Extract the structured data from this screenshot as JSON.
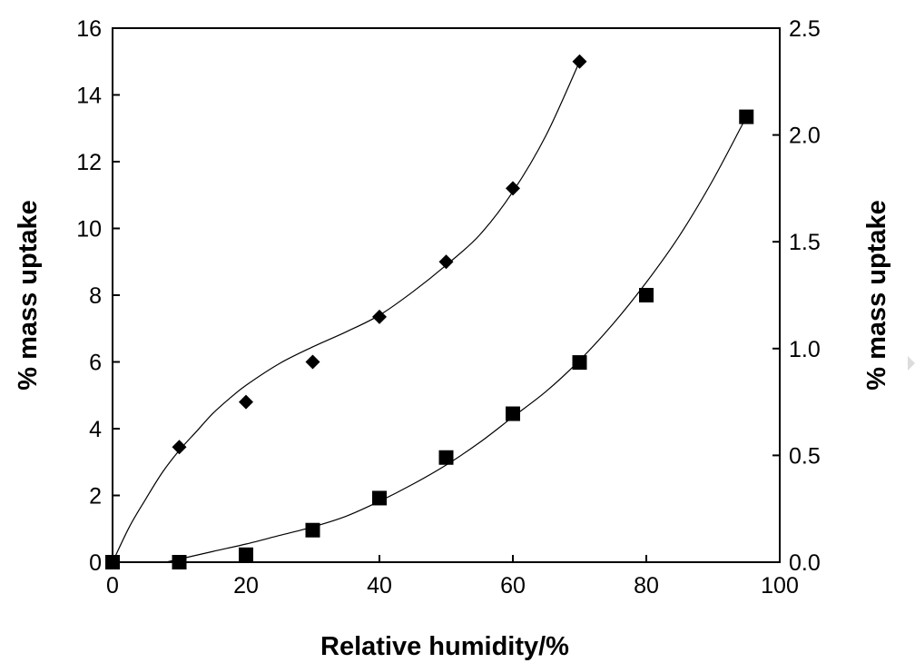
{
  "chart_data": {
    "type": "scatter",
    "xlabel": "Relative humidity/%",
    "ylabel_left": "% mass uptake",
    "ylabel_right": "% mass uptake",
    "xlim": [
      0,
      100
    ],
    "ylim_left": [
      0,
      16
    ],
    "ylim_right": [
      0,
      2.5
    ],
    "x_ticks": [
      "0",
      "20",
      "40",
      "60",
      "80",
      "100"
    ],
    "y_left_ticks": [
      "0",
      "2",
      "4",
      "6",
      "8",
      "10",
      "12",
      "14",
      "16"
    ],
    "y_right_ticks": [
      "0.0",
      "0.5",
      "1.0",
      "1.5",
      "2.0",
      "2.5"
    ],
    "grid": false,
    "series": [
      {
        "marker": "diamond",
        "axis": "left",
        "x": [
          0,
          10,
          20,
          30,
          40,
          50,
          60,
          70
        ],
        "y": [
          0,
          3.45,
          4.8,
          6.0,
          7.35,
          9.0,
          11.2,
          15.0
        ],
        "fit_curve": {
          "x": [
            0,
            2.5,
            5,
            7.5,
            10,
            12.5,
            15,
            17.5,
            20,
            25,
            30,
            35,
            40,
            45,
            50,
            55,
            60,
            65,
            70
          ],
          "y": [
            0,
            1.05,
            1.9,
            2.7,
            3.35,
            3.9,
            4.45,
            4.9,
            5.3,
            5.95,
            6.45,
            6.9,
            7.4,
            8.1,
            8.9,
            9.8,
            11.1,
            12.8,
            15.0
          ]
        }
      },
      {
        "marker": "square",
        "axis": "right",
        "x": [
          0,
          10,
          20,
          30,
          40,
          50,
          60,
          70,
          80,
          95
        ],
        "y": [
          0,
          0,
          0.035,
          0.15,
          0.3,
          0.49,
          0.695,
          0.935,
          1.25,
          2.085
        ],
        "fit_curve": {
          "x": [
            8,
            15,
            20,
            25,
            30,
            35,
            40,
            45,
            50,
            55,
            60,
            65,
            70,
            75,
            80,
            85,
            90,
            95
          ],
          "y": [
            0,
            0.05,
            0.085,
            0.125,
            0.165,
            0.215,
            0.285,
            0.365,
            0.455,
            0.56,
            0.68,
            0.8,
            0.945,
            1.115,
            1.31,
            1.53,
            1.79,
            2.085
          ]
        }
      }
    ]
  }
}
